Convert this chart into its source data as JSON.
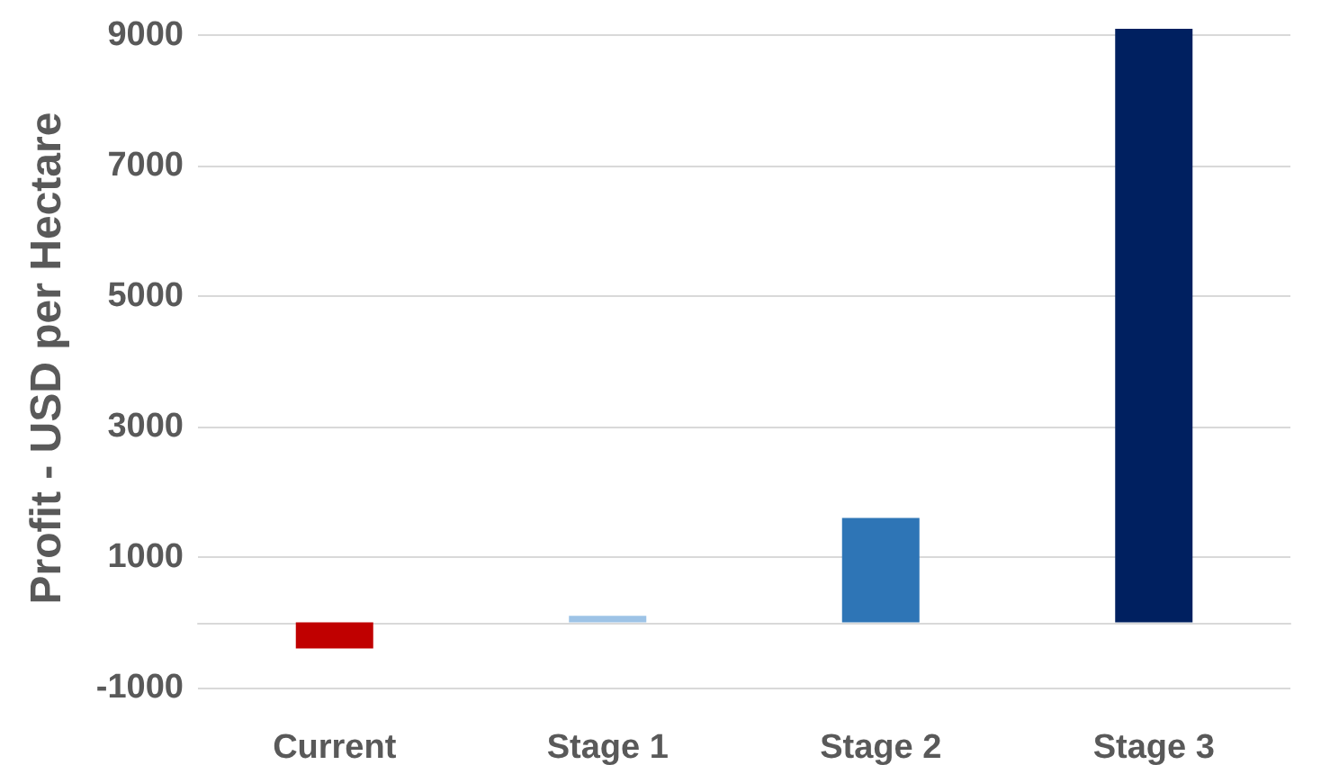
{
  "chart_data": {
    "type": "bar",
    "ylabel": "Profit - USD per Hectare",
    "categories": [
      "Current",
      "Stage 1",
      "Stage 2",
      "Stage 3"
    ],
    "values": [
      -400,
      100,
      1600,
      9100
    ],
    "colors": [
      "#c00000",
      "#9dc3e6",
      "#2e75b6",
      "#002060"
    ],
    "ylim": [
      -1000,
      9100
    ],
    "yticks": [
      -1000,
      1000,
      3000,
      5000,
      7000,
      9000
    ],
    "grid": "y"
  }
}
